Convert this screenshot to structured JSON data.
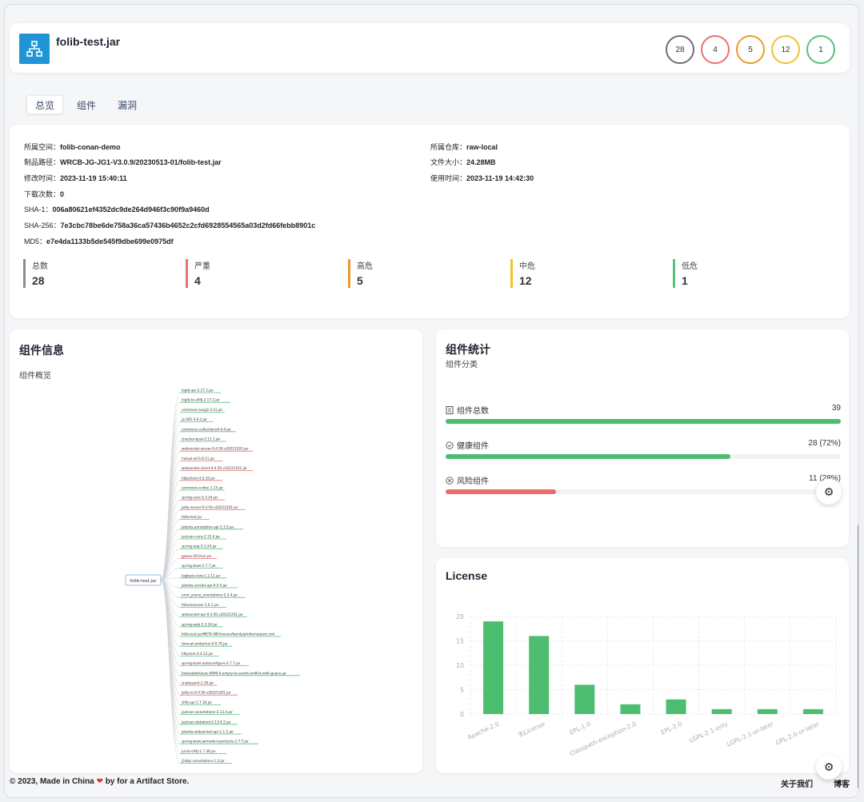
{
  "header": {
    "title": "folib-test.jar",
    "counts": [
      {
        "value": "28",
        "color": "#6b6e73"
      },
      {
        "value": "4",
        "color": "#e8716f"
      },
      {
        "value": "5",
        "color": "#ee9a2b"
      },
      {
        "value": "12",
        "color": "#f2c12e"
      },
      {
        "value": "1",
        "color": "#57c27a"
      }
    ]
  },
  "tabs": [
    "总览",
    "组件",
    "漏洞"
  ],
  "info": {
    "space_label": "所属空间：",
    "space": "folib-conan-demo",
    "repo_label": "所属仓库：",
    "repo": "raw-local",
    "path_label": "制品路径：",
    "path": "WRCB-JG-JG1-V3.0.9/20230513-01/folib-test.jar",
    "size_label": "文件大小：",
    "size": "24.28MB",
    "modified_label": "修改时间：",
    "modified": "2023-11-19 15:40:11",
    "used_label": "使用时间：",
    "used": "2023-11-19 14:42:30",
    "downloads_label": "下载次数：",
    "downloads": "0",
    "sha1_label": "SHA-1：",
    "sha1": "006a80621ef4352dc9de264d946f3c90f9a9460d",
    "sha256_label": "SHA-256：",
    "sha256": "7e3cbc78be6de758a36ca57436b4652c2cfd6928554565a03d2fd66febb8901c",
    "md5_label": "MD5：",
    "md5": "e7e4da1133b5de545f9dbe699e0975df"
  },
  "stats": [
    {
      "label": "总数",
      "value": "28",
      "color": "#8a8d93"
    },
    {
      "label": "严重",
      "value": "4",
      "color": "#e8716f"
    },
    {
      "label": "高危",
      "value": "5",
      "color": "#ee9a2b"
    },
    {
      "label": "中危",
      "value": "12",
      "color": "#f2c12e"
    },
    {
      "label": "低危",
      "value": "1",
      "color": "#57c27a"
    }
  ],
  "component_info": {
    "title": "组件信息",
    "overview": "组件概览",
    "root": "folib-test.jar",
    "nodes": [
      {
        "name": "log4j-api-2.17.2.jar",
        "color": "#57c27a"
      },
      {
        "name": "log4j-to-slf4j-2.17.2.jar",
        "color": "#57c27a"
      },
      {
        "name": "commons-lang3-3.11.jar",
        "color": "#57c27a"
      },
      {
        "name": "jsr305-3.0.2.jar",
        "color": "#57c27a"
      },
      {
        "name": "commons-collections4-4.4.jar",
        "color": "#57c27a"
      },
      {
        "name": "checker-qual-2.11.1.jar",
        "color": "#57c27a"
      },
      {
        "name": "websocket-server-9.4.50.v20221201.jar",
        "color": "#e8716f"
      },
      {
        "name": "hutool-all-5.8.11.jar",
        "color": "#e8716f"
      },
      {
        "name": "websocket-client-9.4.50.v20221201.jar",
        "color": "#e8716f"
      },
      {
        "name": "httpclient-4.5.10.jar",
        "color": "#e8716f"
      },
      {
        "name": "commons-codec-1.15.jar",
        "color": "#57c27a"
      },
      {
        "name": "spring-core-5.3.24.jar",
        "color": "#e8716f"
      },
      {
        "name": "jetty-server-9.4.50.v20221201.jar",
        "color": "#e8716f"
      },
      {
        "name": "folib-test.jar",
        "color": "#57c27a"
      },
      {
        "name": "jakarta.annotation-api-1.3.5.jar",
        "color": "#57c27a"
      },
      {
        "name": "jackson-core-2.13.4.jar",
        "color": "#57c27a"
      },
      {
        "name": "spring-aop-5.3.24.jar",
        "color": "#57c27a"
      },
      {
        "name": "guava-29.0-jre.jar",
        "color": "#e8716f"
      },
      {
        "name": "spring-boot-2.7.7.jar",
        "color": "#57c27a"
      },
      {
        "name": "logback-core-1.2.11.jar",
        "color": "#57c27a"
      },
      {
        "name": "jakarta.servlet-api-4.0.4.jar",
        "color": "#57c27a"
      },
      {
        "name": "error_prone_annotations-2.3.4.jar",
        "color": "#57c27a"
      },
      {
        "name": "failureaccess-1.0.1.jar",
        "color": "#57c27a"
      },
      {
        "name": "websocket-api-9.4.50.v20221201.jar",
        "color": "#57c27a"
      },
      {
        "name": "spring-web-5.3.24.jar",
        "color": "#57c27a"
      },
      {
        "name": "folib-test.jar/META-INF/maven/family/ph/demo/pom.xml",
        "color": "#57c27a"
      },
      {
        "name": "tomcat-embed-el-9.0.70.jar",
        "color": "#57c27a"
      },
      {
        "name": "httpcore-4.4.12.jar",
        "color": "#57c27a"
      },
      {
        "name": "spring-boot-autoconfigure-2.7.7.jar",
        "color": "#57c27a"
      },
      {
        "name": "listenablefuture-9999.0-empty-to-avoid-conflict-with-guava.jar",
        "color": "#57c27a"
      },
      {
        "name": "snakeyaml-1.30.jar",
        "color": "#e8716f"
      },
      {
        "name": "jetty-io-9.4.50.v20221201.jar",
        "color": "#e8716f"
      },
      {
        "name": "slf4j-api-1.7.36.jar",
        "color": "#57c27a"
      },
      {
        "name": "jackson-annotations-2.13.4.jar",
        "color": "#57c27a"
      },
      {
        "name": "jackson-databind-2.13.4.2.jar",
        "color": "#57c27a"
      },
      {
        "name": "jakarta.websocket-api-1.1.2.jar",
        "color": "#57c27a"
      },
      {
        "name": "spring-boot-jarmode-layertools-2.7.7.jar",
        "color": "#57c27a"
      },
      {
        "name": "jul-to-slf4j-1.7.36.jar",
        "color": "#57c27a"
      },
      {
        "name": "j2objc-annotations-1.3.jar",
        "color": "#57c27a"
      }
    ]
  },
  "component_stats": {
    "title": "组件统计",
    "category": "组件分类",
    "rows": [
      {
        "label": "组件总数",
        "value": "39",
        "fraction": 1.0,
        "color": "#4dbd6f",
        "icon": "list-icon"
      },
      {
        "label": "健康组件",
        "value": "28 (72%)",
        "fraction": 0.72,
        "color": "#4dbd6f",
        "icon": "check-circle-icon"
      },
      {
        "label": "风险组件",
        "value": "11 (28%)",
        "fraction": 0.28,
        "color": "#ee6b6b",
        "icon": "x-circle-icon"
      }
    ]
  },
  "license": {
    "title": "License",
    "chart_data": {
      "type": "bar",
      "categories": [
        "Apache-2.0",
        "无License",
        "EPL-1.0",
        "Classpath-exception-2.0",
        "EPL-2.0",
        "LGPL-2.1-only",
        "LGPL-2.1-or-later",
        "GPL-2.0-or-later"
      ],
      "values": [
        19,
        16,
        6,
        2,
        3,
        1,
        1,
        1
      ],
      "yticks": [
        "0",
        "5",
        "10",
        "15",
        "20"
      ],
      "ylim": [
        0,
        20
      ],
      "color": "#4dbd6f",
      "grid": true
    }
  },
  "footer": {
    "copyright": "© 2023, Made in China",
    "by": "by for a Artifact Store.",
    "about": "关于我们",
    "blog": "博客"
  }
}
